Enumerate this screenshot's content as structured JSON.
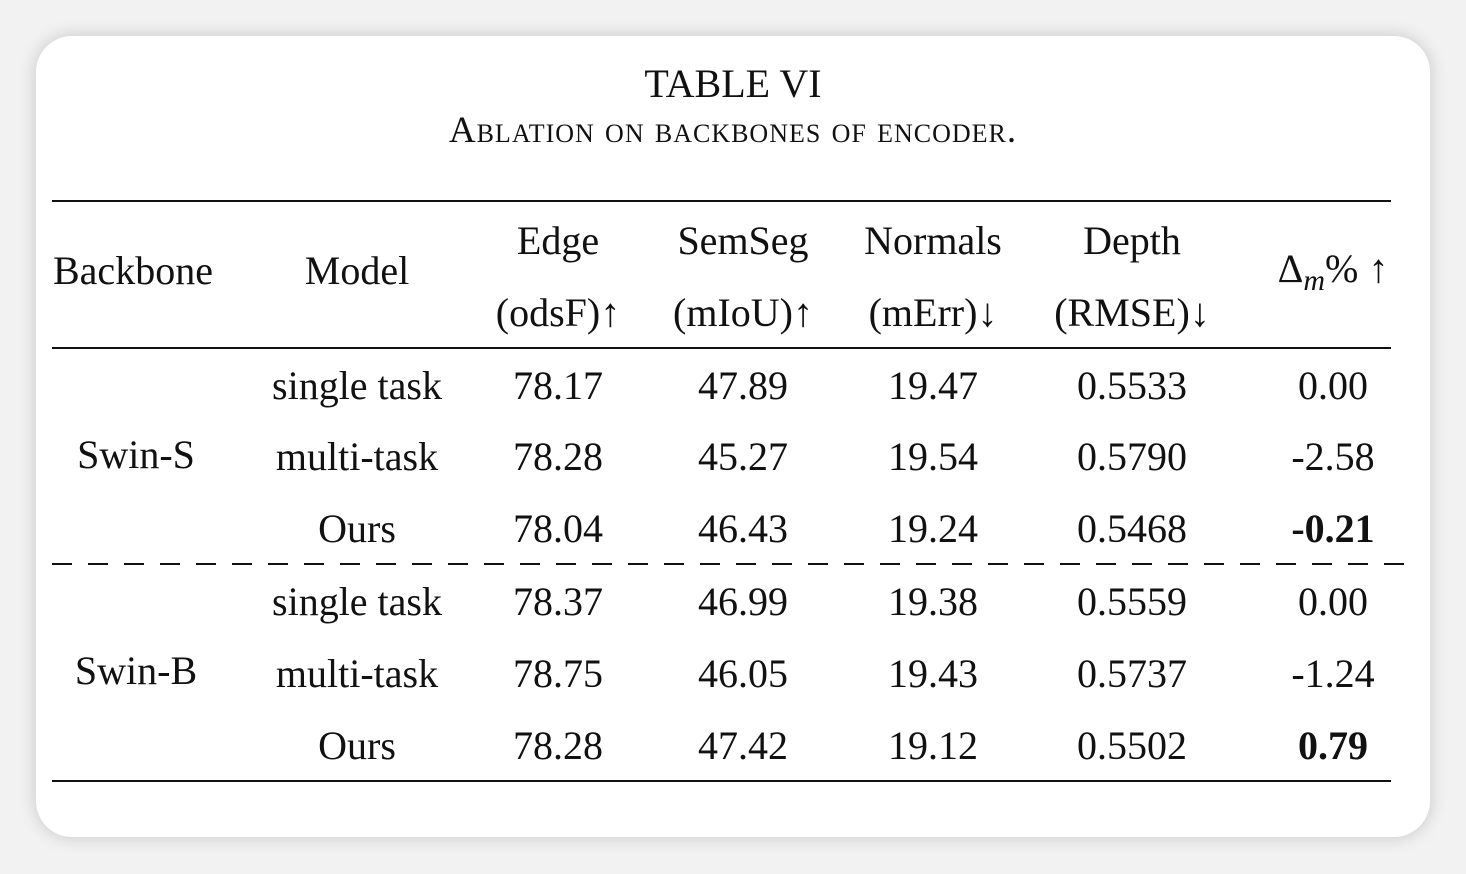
{
  "table": {
    "title": "TABLE VI",
    "caption": "Ablation on backbones of encoder.",
    "headers": {
      "backbone": "Backbone",
      "model": "Model",
      "edge": [
        "Edge",
        "(odsF)↑"
      ],
      "semseg": [
        "SemSeg",
        "(mIoU)↑"
      ],
      "normals": [
        "Normals",
        "(mErr)↓"
      ],
      "depth": [
        "Depth",
        "(RMSE)↓"
      ],
      "delta_symbol": "Δ",
      "delta_sub": "m",
      "delta_suffix": "% ↑"
    },
    "groups": [
      {
        "backbone": "Swin-S",
        "rows": [
          {
            "model": "single task",
            "edge": "78.17",
            "semseg": "47.89",
            "normals": "19.47",
            "depth": "0.5533",
            "delta": "0.00"
          },
          {
            "model": "multi-task",
            "edge": "78.28",
            "semseg": "45.27",
            "normals": "19.54",
            "depth": "0.5790",
            "delta": "-2.58"
          },
          {
            "model": "Ours",
            "edge": "78.04",
            "semseg": "46.43",
            "normals": "19.24",
            "depth": "0.5468",
            "delta": "-0.21"
          }
        ]
      },
      {
        "backbone": "Swin-B",
        "rows": [
          {
            "model": "single task",
            "edge": "78.37",
            "semseg": "46.99",
            "normals": "19.38",
            "depth": "0.5559",
            "delta": "0.00"
          },
          {
            "model": "multi-task",
            "edge": "78.75",
            "semseg": "46.05",
            "normals": "19.43",
            "depth": "0.5737",
            "delta": "-1.24"
          },
          {
            "model": "Ours",
            "edge": "78.28",
            "semseg": "47.42",
            "normals": "19.12",
            "depth": "0.5502",
            "delta": "0.79"
          }
        ]
      }
    ]
  }
}
